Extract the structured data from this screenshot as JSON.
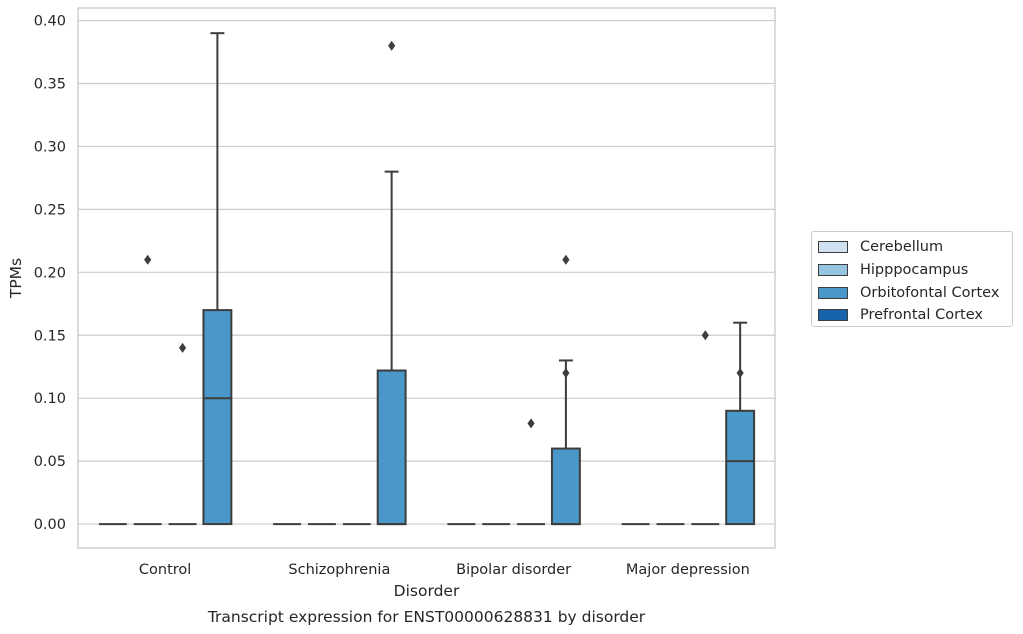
{
  "chart_data": {
    "type": "box",
    "title": "Transcript expression for ENST00000628831 by disorder",
    "xlabel": "Disorder",
    "ylabel": "TPMs",
    "ylim": [
      -0.019,
      0.41
    ],
    "yticks": [
      "0.00",
      "0.05",
      "0.10",
      "0.15",
      "0.20",
      "0.25",
      "0.30",
      "0.35",
      "0.40"
    ],
    "categories": [
      "Control",
      "Schizophrenia",
      "Bipolar disorder",
      "Major depression"
    ],
    "grid": true,
    "legend_position": "right",
    "series": [
      {
        "name": "Cerebellum",
        "color": "#d0e1f2",
        "boxes": [
          {
            "q1": 0,
            "median": 0,
            "q3": 0,
            "lo": 0,
            "hi": 0,
            "outliers": []
          },
          {
            "q1": 0,
            "median": 0,
            "q3": 0,
            "lo": 0,
            "hi": 0,
            "outliers": []
          },
          {
            "q1": 0,
            "median": 0,
            "q3": 0,
            "lo": 0,
            "hi": 0,
            "outliers": []
          },
          {
            "q1": 0,
            "median": 0,
            "q3": 0,
            "lo": 0,
            "hi": 0,
            "outliers": []
          }
        ]
      },
      {
        "name": "Hipppocampus",
        "color": "#94c4df",
        "boxes": [
          {
            "q1": 0,
            "median": 0,
            "q3": 0,
            "lo": 0,
            "hi": 0,
            "outliers": [
              0.21
            ]
          },
          {
            "q1": 0,
            "median": 0,
            "q3": 0,
            "lo": 0,
            "hi": 0,
            "outliers": []
          },
          {
            "q1": 0,
            "median": 0,
            "q3": 0,
            "lo": 0,
            "hi": 0,
            "outliers": []
          },
          {
            "q1": 0,
            "median": 0,
            "q3": 0,
            "lo": 0,
            "hi": 0,
            "outliers": []
          }
        ]
      },
      {
        "name": "Orbitofontal Cortex",
        "color": "#4a98c9",
        "boxes": [
          {
            "q1": 0,
            "median": 0,
            "q3": 0,
            "lo": 0,
            "hi": 0,
            "outliers": [
              0.14
            ]
          },
          {
            "q1": 0,
            "median": 0,
            "q3": 0,
            "lo": 0,
            "hi": 0,
            "outliers": []
          },
          {
            "q1": 0,
            "median": 0,
            "q3": 0,
            "lo": 0,
            "hi": 0,
            "outliers": [
              0.08
            ]
          },
          {
            "q1": 0,
            "median": 0,
            "q3": 0,
            "lo": 0,
            "hi": 0,
            "outliers": [
              0.15
            ]
          }
        ]
      },
      {
        "name": "Prefrontal Cortex",
        "color": "#1764ab",
        "boxes": [
          {
            "q1": 0,
            "median": 0.1,
            "q3": 0.17,
            "lo": 0,
            "hi": 0.39,
            "outliers": []
          },
          {
            "q1": 0,
            "median": 0,
            "q3": 0.122,
            "lo": 0,
            "hi": 0.28,
            "outliers": [
              0.38
            ]
          },
          {
            "q1": 0,
            "median": 0,
            "q3": 0.06,
            "lo": 0,
            "hi": 0.13,
            "outliers": [
              0.12,
              0.21
            ]
          },
          {
            "q1": 0,
            "median": 0.05,
            "q3": 0.09,
            "lo": 0,
            "hi": 0.16,
            "outliers": [
              0.12
            ]
          }
        ]
      }
    ]
  }
}
